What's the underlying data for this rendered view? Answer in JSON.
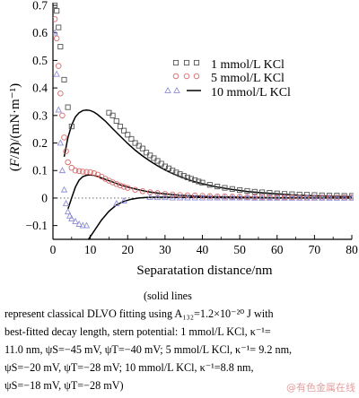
{
  "chart_data": {
    "type": "scatter",
    "xlabel": "Separatation distance/nm",
    "ylabel": "(F/R)/(mN·m⁻¹)",
    "xlim": [
      0,
      80
    ],
    "ylim": [
      -0.15,
      0.7
    ],
    "xticks": [
      0,
      10,
      20,
      30,
      40,
      50,
      60,
      70,
      80
    ],
    "yticks": [
      -0.1,
      0,
      0.1,
      0.2,
      0.3,
      0.4,
      0.5,
      0.6,
      0.7
    ],
    "ytick_labels": [
      "−0.1",
      "0",
      "0.1",
      "0.2",
      "0.3",
      "0.4",
      "0.5",
      "0.6",
      "0.7"
    ],
    "legend_position": "top-right",
    "zero_line": "dotted",
    "series": [
      {
        "name": "1 mmol/L KCl",
        "marker": "square",
        "color": "#555555",
        "points": [
          [
            0.5,
            0.7
          ],
          [
            1,
            0.68
          ],
          [
            1.5,
            0.62
          ],
          [
            2,
            0.55
          ],
          [
            3,
            0.43
          ],
          [
            4,
            0.33
          ],
          [
            5,
            0.26
          ],
          [
            15,
            0.31
          ],
          [
            16,
            0.3
          ],
          [
            17,
            0.28
          ],
          [
            18,
            0.26
          ],
          [
            19,
            0.245
          ],
          [
            20,
            0.23
          ],
          [
            21,
            0.215
          ],
          [
            22,
            0.2
          ],
          [
            23,
            0.19
          ],
          [
            24,
            0.18
          ],
          [
            25,
            0.165
          ],
          [
            26,
            0.155
          ],
          [
            27,
            0.145
          ],
          [
            28,
            0.135
          ],
          [
            29,
            0.125
          ],
          [
            30,
            0.115
          ],
          [
            31,
            0.108
          ],
          [
            32,
            0.1
          ],
          [
            33,
            0.093
          ],
          [
            34,
            0.087
          ],
          [
            35,
            0.081
          ],
          [
            36,
            0.075
          ],
          [
            37,
            0.07
          ],
          [
            38,
            0.065
          ],
          [
            39,
            0.06
          ],
          [
            40,
            0.056
          ],
          [
            42,
            0.048
          ],
          [
            44,
            0.042
          ],
          [
            46,
            0.037
          ],
          [
            48,
            0.033
          ],
          [
            50,
            0.029
          ],
          [
            52,
            0.026
          ],
          [
            54,
            0.023
          ],
          [
            56,
            0.021
          ],
          [
            58,
            0.019
          ],
          [
            60,
            0.017
          ],
          [
            62,
            0.015
          ],
          [
            64,
            0.014
          ],
          [
            66,
            0.013
          ],
          [
            68,
            0.012
          ],
          [
            70,
            0.011
          ],
          [
            72,
            0.01
          ],
          [
            74,
            0.009
          ],
          [
            76,
            0.009
          ],
          [
            78,
            0.008
          ],
          [
            80,
            0.008
          ]
        ]
      },
      {
        "name": "5 mmol/L KCl",
        "marker": "circle",
        "color": "#d96a6a",
        "points": [
          [
            0.5,
            0.65
          ],
          [
            1,
            0.58
          ],
          [
            1.5,
            0.48
          ],
          [
            2,
            0.38
          ],
          [
            2.5,
            0.3
          ],
          [
            3,
            0.22
          ],
          [
            3.5,
            0.17
          ],
          [
            4,
            0.13
          ],
          [
            5,
            0.11
          ],
          [
            6,
            0.1
          ],
          [
            7,
            0.098
          ],
          [
            8,
            0.096
          ],
          [
            9,
            0.095
          ],
          [
            10,
            0.094
          ],
          [
            11,
            0.09
          ],
          [
            12,
            0.085
          ],
          [
            13,
            0.078
          ],
          [
            14,
            0.07
          ],
          [
            15,
            0.063
          ],
          [
            16,
            0.057
          ],
          [
            17,
            0.051
          ],
          [
            18,
            0.046
          ],
          [
            19,
            0.041
          ],
          [
            20,
            0.037
          ],
          [
            22,
            0.03
          ],
          [
            24,
            0.025
          ],
          [
            26,
            0.021
          ],
          [
            28,
            0.018
          ],
          [
            30,
            0.015
          ],
          [
            32,
            0.013
          ],
          [
            34,
            0.011
          ],
          [
            36,
            0.01
          ],
          [
            38,
            0.009
          ],
          [
            40,
            0.008
          ],
          [
            42,
            0.007
          ],
          [
            44,
            0.006
          ],
          [
            46,
            0.006
          ],
          [
            48,
            0.005
          ],
          [
            50,
            0.005
          ],
          [
            52,
            0.004
          ],
          [
            54,
            0.004
          ],
          [
            56,
            0.004
          ],
          [
            58,
            0.003
          ],
          [
            60,
            0.003
          ],
          [
            62,
            0.003
          ],
          [
            64,
            0.003
          ],
          [
            66,
            0.002
          ],
          [
            68,
            0.002
          ],
          [
            70,
            0.002
          ],
          [
            72,
            0.002
          ],
          [
            74,
            0.002
          ],
          [
            76,
            0.002
          ],
          [
            78,
            0.002
          ],
          [
            80,
            0.002
          ]
        ]
      },
      {
        "name": "10 mmol/L KCl",
        "marker": "triangle",
        "color": "#8f8fd6",
        "points": [
          [
            0.5,
            0.6
          ],
          [
            1,
            0.45
          ],
          [
            1.5,
            0.32
          ],
          [
            2,
            0.2
          ],
          [
            2.5,
            0.1
          ],
          [
            3,
            0.03
          ],
          [
            3.5,
            -0.02
          ],
          [
            4,
            -0.05
          ],
          [
            4.5,
            -0.065
          ],
          [
            5,
            -0.075
          ],
          [
            6,
            -0.085
          ],
          [
            7,
            -0.095
          ],
          [
            8,
            -0.1
          ],
          [
            9,
            -0.1
          ],
          [
            17,
            -0.02
          ],
          [
            19,
            -0.01
          ],
          [
            26,
            0.003
          ],
          [
            28,
            0.002
          ],
          [
            30,
            0.002
          ],
          [
            32,
            0.001
          ],
          [
            34,
            0.001
          ],
          [
            36,
            0.001
          ],
          [
            38,
            0.001
          ],
          [
            40,
            0.001
          ],
          [
            42,
            0.001
          ],
          [
            44,
            0.001
          ],
          [
            46,
            0.001
          ],
          [
            48,
            0.001
          ],
          [
            50,
            0.001
          ],
          [
            52,
            0.001
          ],
          [
            54,
            0.0
          ],
          [
            56,
            0.0
          ],
          [
            58,
            0.0
          ],
          [
            60,
            0.0
          ],
          [
            62,
            0.0
          ],
          [
            64,
            0.0
          ],
          [
            66,
            0.0
          ],
          [
            68,
            0.0
          ],
          [
            70,
            0.0
          ],
          [
            72,
            0.0
          ],
          [
            74,
            0.0
          ],
          [
            76,
            0.0
          ],
          [
            78,
            0.0
          ],
          [
            80,
            0.0
          ]
        ]
      }
    ],
    "fits": [
      {
        "series": "1 mmol/L KCl",
        "points": [
          [
            3,
            0.15
          ],
          [
            4,
            0.22
          ],
          [
            5,
            0.265
          ],
          [
            6,
            0.295
          ],
          [
            7,
            0.31
          ],
          [
            8,
            0.318
          ],
          [
            9,
            0.32
          ],
          [
            10,
            0.318
          ],
          [
            11,
            0.312
          ],
          [
            12,
            0.303
          ],
          [
            14,
            0.28
          ],
          [
            16,
            0.252
          ],
          [
            18,
            0.225
          ],
          [
            20,
            0.198
          ],
          [
            22,
            0.174
          ],
          [
            24,
            0.153
          ],
          [
            26,
            0.134
          ],
          [
            28,
            0.117
          ],
          [
            30,
            0.102
          ],
          [
            32,
            0.089
          ],
          [
            34,
            0.078
          ],
          [
            36,
            0.068
          ],
          [
            38,
            0.059
          ],
          [
            40,
            0.052
          ],
          [
            44,
            0.04
          ],
          [
            48,
            0.031
          ],
          [
            52,
            0.024
          ],
          [
            56,
            0.019
          ],
          [
            60,
            0.015
          ],
          [
            65,
            0.011
          ],
          [
            70,
            0.008
          ],
          [
            75,
            0.006
          ],
          [
            80,
            0.005
          ]
        ]
      },
      {
        "series": "5 mmol/L KCl",
        "points": [
          [
            4,
            -0.04
          ],
          [
            5,
            0.0
          ],
          [
            6,
            0.04
          ],
          [
            7,
            0.065
          ],
          [
            8,
            0.078
          ],
          [
            9,
            0.083
          ],
          [
            10,
            0.084
          ],
          [
            11,
            0.082
          ],
          [
            12,
            0.078
          ],
          [
            14,
            0.068
          ],
          [
            16,
            0.058
          ],
          [
            18,
            0.048
          ],
          [
            20,
            0.04
          ],
          [
            22,
            0.033
          ],
          [
            24,
            0.027
          ],
          [
            26,
            0.022
          ],
          [
            28,
            0.018
          ],
          [
            30,
            0.015
          ],
          [
            34,
            0.01
          ],
          [
            38,
            0.007
          ],
          [
            42,
            0.005
          ],
          [
            46,
            0.004
          ],
          [
            50,
            0.003
          ],
          [
            55,
            0.002
          ],
          [
            60,
            0.001
          ],
          [
            70,
            0.001
          ],
          [
            80,
            0.0
          ]
        ]
      },
      {
        "series": "10 mmol/L KCl",
        "points": [
          [
            9.5,
            -0.15
          ],
          [
            11,
            -0.12
          ],
          [
            13,
            -0.08
          ],
          [
            15,
            -0.048
          ],
          [
            17,
            -0.025
          ],
          [
            19,
            -0.012
          ],
          [
            21,
            -0.004
          ],
          [
            23,
            0.0
          ],
          [
            25,
            0.002
          ],
          [
            27,
            0.003
          ],
          [
            30,
            0.003
          ],
          [
            35,
            0.002
          ],
          [
            40,
            0.002
          ],
          [
            50,
            0.001
          ],
          [
            60,
            0.0
          ],
          [
            80,
            0.0
          ]
        ]
      }
    ]
  },
  "caption": {
    "first": "(solid   lines",
    "lines": [
      "represent classical DLVO fitting using A₁₃₂=1.2×10⁻²⁰ J with",
      "best-fitted decay length, stern potential: 1 mmol/L KCl, κ⁻¹=",
      "11.0 nm, ψS=−45 mV, ψT=−40 mV; 5 mmol/L KCl, κ⁻¹= 9.2 nm,",
      "ψS=−20  mV,  ψT=−28  mV;  10  mmol/L  KCl,  κ⁻¹=8.8  nm,",
      "ψS=−18 mV, ψT=−28 mV)"
    ]
  },
  "watermark": "@有色金属在线"
}
